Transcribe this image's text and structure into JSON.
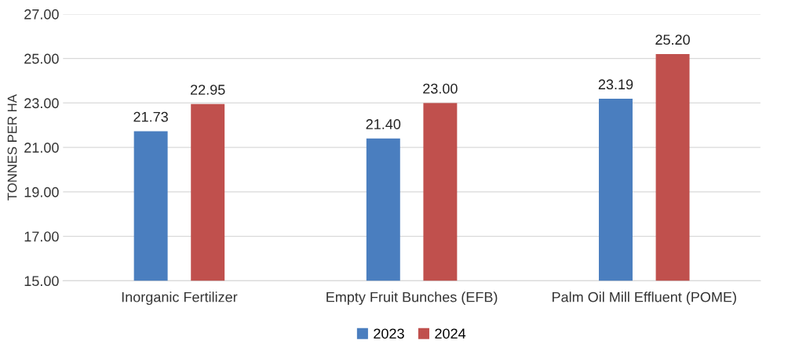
{
  "chart_data": {
    "type": "bar",
    "ylabel": "TONNES PER HA",
    "categories": [
      "Inorganic Fertilizer",
      "Empty Fruit Bunches (EFB)",
      "Palm Oil Mill Effluent (POME)"
    ],
    "series": [
      {
        "name": "2023",
        "color": "#4a7ebf",
        "values": [
          21.73,
          21.4,
          23.19
        ],
        "value_labels": [
          "21.73",
          "21.40",
          "23.19"
        ]
      },
      {
        "name": "2024",
        "color": "#c0504d",
        "values": [
          22.95,
          23.0,
          25.2
        ],
        "value_labels": [
          "22.95",
          "23.00",
          "25.20"
        ]
      }
    ],
    "ylim": [
      15,
      27
    ],
    "yticks": [
      {
        "value": 15,
        "label": "15.00"
      },
      {
        "value": 17,
        "label": "17.00"
      },
      {
        "value": 19,
        "label": "19.00"
      },
      {
        "value": 21,
        "label": "21.00"
      },
      {
        "value": 23,
        "label": "23.00"
      },
      {
        "value": 25,
        "label": "25.00"
      },
      {
        "value": 27,
        "label": "27.00"
      }
    ],
    "grid": "y",
    "legend": "bottom"
  }
}
